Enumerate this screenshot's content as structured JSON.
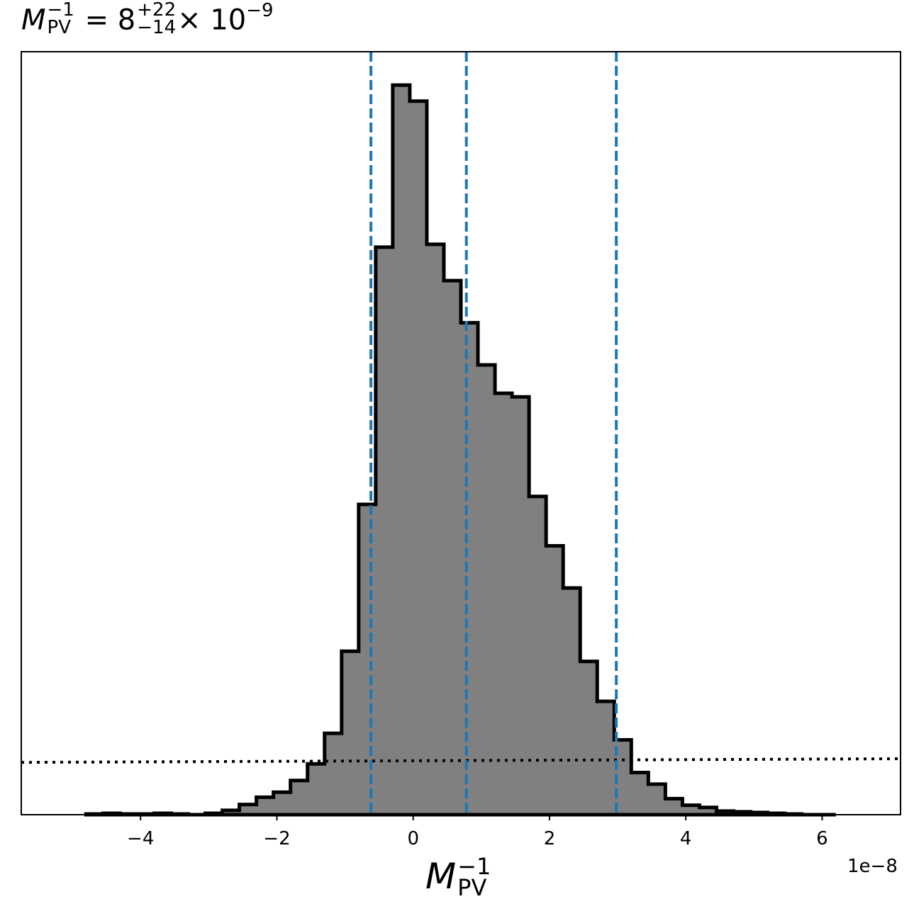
{
  "title": {
    "symbol": "M",
    "symbol_sub": "PV",
    "symbol_sup": "−1",
    "equals": "=",
    "value": "8",
    "err_plus": "+22",
    "err_minus": "−14",
    "times": "×",
    "scale_base": "10",
    "scale_exp": "−9"
  },
  "chart_data": {
    "type": "histogram",
    "xlabel": {
      "symbol": "M",
      "sub": "PV",
      "sup": "−1"
    },
    "offset_text": "1e−8",
    "xlim": [
      -5.75,
      7.15
    ],
    "ylim": [
      0,
      1050
    ],
    "x_ticks": [
      -4,
      -2,
      0,
      2,
      4,
      6
    ],
    "x_tick_labels": [
      "−4",
      "−2",
      "0",
      "2",
      "4",
      "6"
    ],
    "bin_edges": [
      -4.8,
      -4.55,
      -4.3,
      -4.05,
      -3.8,
      -3.55,
      -3.3,
      -3.05,
      -2.8,
      -2.55,
      -2.3,
      -2.05,
      -1.8,
      -1.55,
      -1.3,
      -1.05,
      -0.8,
      -0.55,
      -0.3,
      -0.05,
      0.2,
      0.45,
      0.7,
      0.95,
      1.2,
      1.45,
      1.7,
      1.95,
      2.2,
      2.45,
      2.7,
      2.95,
      3.2,
      3.45,
      3.7,
      3.95,
      4.2,
      4.45,
      4.7,
      4.95,
      5.2,
      5.45,
      5.7,
      5.95,
      6.2
    ],
    "counts": [
      1,
      2,
      1,
      1,
      2,
      1,
      0,
      2,
      6,
      14,
      24,
      31,
      47,
      70,
      112,
      225,
      427,
      781,
      1004,
      982,
      785,
      735,
      677,
      619,
      580,
      575,
      438,
      370,
      312,
      211,
      156,
      103,
      58,
      42,
      22,
      13,
      10,
      5,
      4,
      3,
      2,
      1,
      0,
      0
    ],
    "hist_fill": "#808080",
    "hist_edge": "#000000",
    "vlines": [
      -0.62,
      0.78,
      2.98
    ],
    "vline_color": "#1f77b4",
    "prior_line": {
      "x": [
        -5.75,
        7.15
      ],
      "y": [
        72,
        77
      ],
      "color": "#000000",
      "style": "dotted"
    }
  }
}
